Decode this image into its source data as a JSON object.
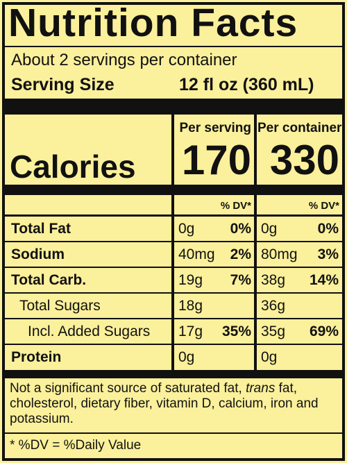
{
  "title": "Nutrition Facts",
  "servings": "About 2 servings per container",
  "serving_size": {
    "label": "Serving Size",
    "value": "12 fl oz (360 mL)"
  },
  "calories": {
    "label": "Calories",
    "columns": [
      {
        "header": "Per serving",
        "value": "170"
      },
      {
        "header": "Per container",
        "value": "330"
      }
    ]
  },
  "dv_headers": [
    "% DV*",
    "% DV*"
  ],
  "nutrients": [
    {
      "name": "Total Fat",
      "per_serving": {
        "amount": "0g",
        "dv": "0%"
      },
      "per_container": {
        "amount": "0g",
        "dv": "0%"
      }
    },
    {
      "name": "Sodium",
      "per_serving": {
        "amount": "40mg",
        "dv": "2%"
      },
      "per_container": {
        "amount": "80mg",
        "dv": "3%"
      }
    },
    {
      "name": "Total Carb.",
      "per_serving": {
        "amount": "19g",
        "dv": "7%"
      },
      "per_container": {
        "amount": "38g",
        "dv": "14%"
      }
    },
    {
      "name": "Total Sugars",
      "per_serving": {
        "amount": "18g"
      },
      "per_container": {
        "amount": "36g"
      }
    },
    {
      "name": "Incl. Added Sugars",
      "per_serving": {
        "amount": "17g",
        "dv": "35%"
      },
      "per_container": {
        "amount": "35g",
        "dv": "69%"
      }
    },
    {
      "name": "Protein",
      "per_serving": {
        "amount": "0g"
      },
      "per_container": {
        "amount": "0g"
      }
    }
  ],
  "footnote": [
    "Not a significant source of saturated fat, ",
    "trans",
    " fat, cholesterol, dietary fiber, vitamin D, calcium, iron and potassium."
  ],
  "dv_note": "* %DV = %Daily Value"
}
